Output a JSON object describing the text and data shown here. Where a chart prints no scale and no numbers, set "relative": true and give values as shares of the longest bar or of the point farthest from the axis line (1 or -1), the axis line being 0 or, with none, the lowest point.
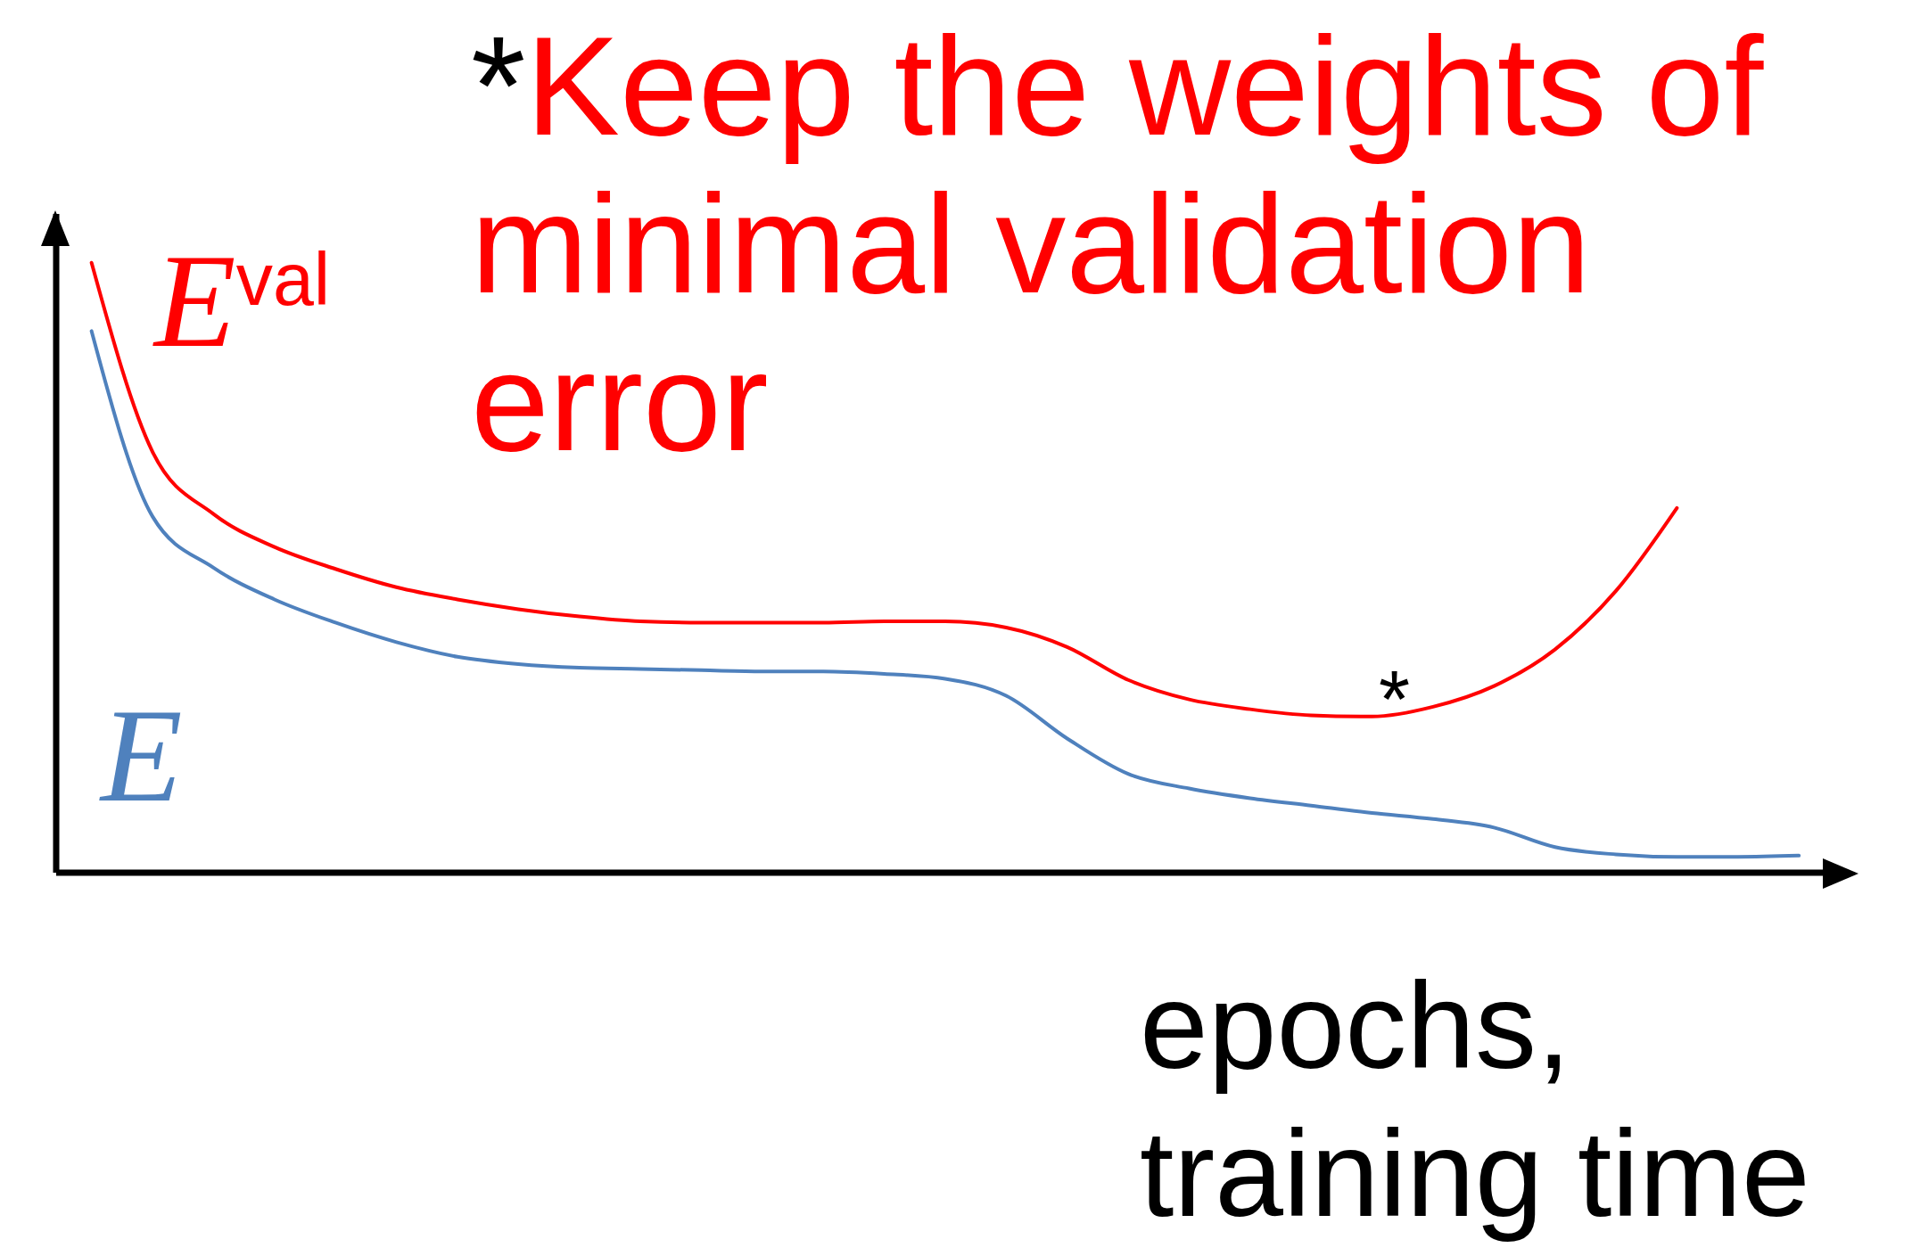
{
  "chart_data": {
    "type": "line",
    "relative": true,
    "title": "*Keep the weights of minimal validation error",
    "xlabel": "epochs, training time",
    "marker": "none",
    "line_style": "solid",
    "categories": [
      null,
      null,
      null,
      null,
      null,
      null,
      null,
      null,
      null,
      null,
      null,
      null,
      null,
      null,
      null,
      null,
      null,
      null,
      null,
      null,
      null,
      null,
      null,
      null,
      null,
      null,
      null,
      null,
      null
    ],
    "series": [
      {
        "name": "E$^{val}$",
        "color": "#ff0000",
        "values": [
          1.0,
          0.69,
          0.588,
          0.534,
          0.498,
          0.468,
          0.448,
          0.432,
          0.42,
          0.412,
          0.41,
          0.41,
          0.41,
          0.412,
          0.412,
          0.402,
          0.37,
          0.316,
          0.284,
          0.268,
          0.258,
          0.256,
          0.272,
          0.306,
          0.366,
          0.462,
          0.598,
          null,
          null
        ]
      },
      {
        "name": "E",
        "color": "#4f81bd",
        "values": [
          0.888,
          0.584,
          0.5,
          0.448,
          0.41,
          0.378,
          0.354,
          0.342,
          0.336,
          0.334,
          0.332,
          0.33,
          0.33,
          0.326,
          0.318,
          0.29,
          0.22,
          0.162,
          0.138,
          0.122,
          0.11,
          0.098,
          0.088,
          0.074,
          0.042,
          0.03,
          0.026,
          0.026,
          0.028
        ]
      }
    ],
    "annotations": [
      "*"
    ]
  }
}
